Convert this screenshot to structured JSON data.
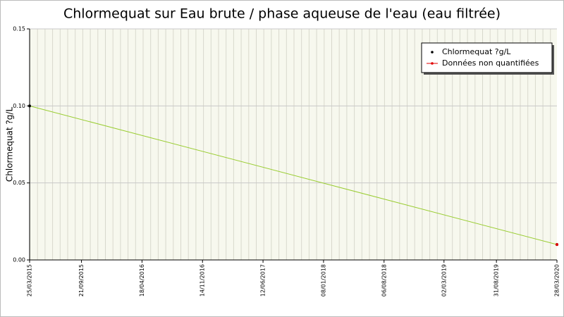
{
  "chart_data": {
    "type": "line",
    "title": "Chlormequat sur Eau brute / phase aqueuse de l'eau (eau filtrée)",
    "y_label": "Chlormequat ?g/L",
    "x": [
      "25/03/2015",
      "28/03/2020"
    ],
    "xlim": [
      "25/03/2015",
      "28/03/2020"
    ],
    "xticks": [
      "25/03/2015",
      "21/09/2015",
      "18/04/2016",
      "14/11/2016",
      "12/06/2017",
      "08/01/2018",
      "06/08/2018",
      "02/03/2019",
      "31/08/2019",
      "28/03/2020"
    ],
    "ylim": [
      0,
      0.15
    ],
    "yticks": [
      {
        "value": 0,
        "label": "0.00"
      },
      {
        "value": 0.05,
        "label": "0.05"
      },
      {
        "value": 0.1,
        "label": "0.10"
      },
      {
        "value": 0.15,
        "label": "0.15"
      }
    ],
    "grid": true,
    "legend": "top-right",
    "series": [
      {
        "name": "Chlormequat ?g/L",
        "color": "#9acd32",
        "marker_color": "#000000",
        "values": [
          0.1,
          0.01
        ]
      },
      {
        "name": "Données non quantifiées",
        "color": "#e00000",
        "values": [
          null,
          0.01
        ]
      }
    ]
  }
}
